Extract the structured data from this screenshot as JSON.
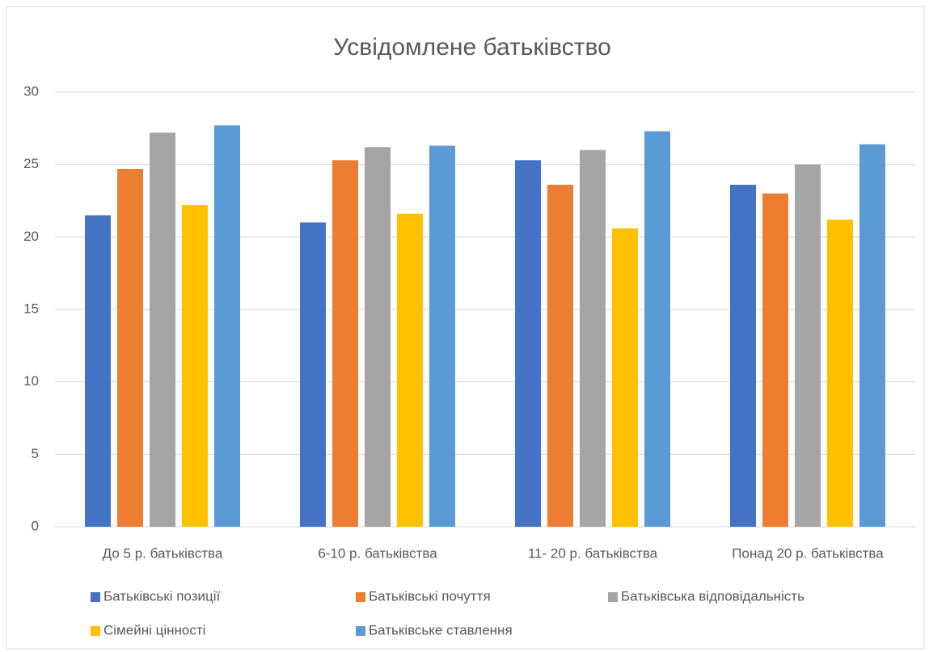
{
  "chart_data": {
    "type": "bar",
    "title": "Усвідомлене батьківство",
    "categories": [
      "До 5 р. батьківства",
      "6-10 р. батьківства",
      "11- 20 р. батьківства",
      "Понад 20 р. батьківства"
    ],
    "series": [
      {
        "name": "Батьківські позиції",
        "color": "#4472c4",
        "values": [
          21.5,
          21.0,
          25.3,
          23.6
        ]
      },
      {
        "name": "Батьківські почуття",
        "color": "#ed7d31",
        "values": [
          24.7,
          25.3,
          23.6,
          23.0
        ]
      },
      {
        "name": "Батьківська відповідальність",
        "color": "#a5a5a5",
        "values": [
          27.2,
          26.2,
          26.0,
          25.0
        ]
      },
      {
        "name": "Сімейні цінності",
        "color": "#ffc000",
        "values": [
          22.2,
          21.6,
          20.6,
          21.2
        ]
      },
      {
        "name": "Батьківське ставлення",
        "color": "#5b9bd5",
        "values": [
          27.7,
          26.3,
          27.3,
          26.4
        ]
      }
    ],
    "ylim": [
      0,
      30
    ],
    "yticks": [
      0,
      5,
      10,
      15,
      20,
      25,
      30
    ],
    "grid": true
  }
}
